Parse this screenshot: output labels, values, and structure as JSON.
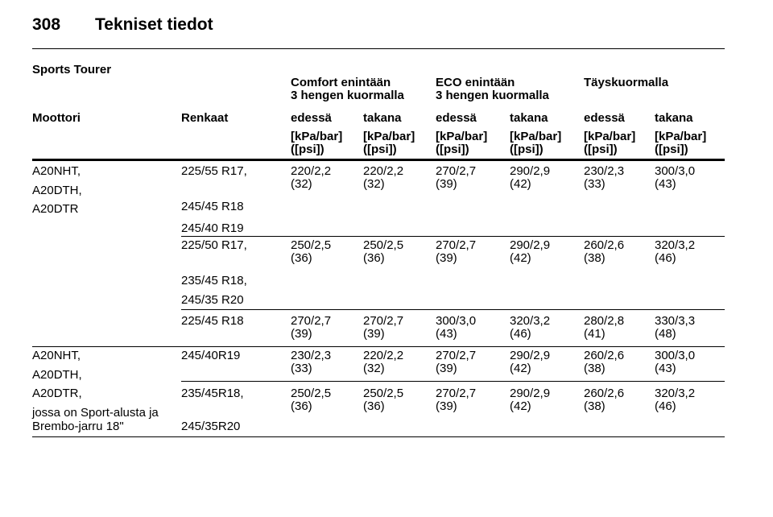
{
  "header": {
    "page_number": "308",
    "title": "Tekniset tiedot"
  },
  "table": {
    "caption": "Sports Tourer",
    "group_headers": [
      [
        "Comfort enintään",
        "3 hengen kuormalla"
      ],
      [
        "ECO enintään",
        "3 hengen kuormalla"
      ],
      [
        "Täyskuormalla"
      ]
    ],
    "columns": [
      "Moottori",
      "Renkaat",
      "edessä",
      "takana",
      "edessä",
      "takana",
      "edessä",
      "takana"
    ],
    "units": [
      [
        "[kPa/bar]",
        "([psi])"
      ],
      [
        "[kPa/bar]",
        "([psi])"
      ],
      [
        "[kPa/bar]",
        "([psi])"
      ],
      [
        "[kPa/bar]",
        "([psi])"
      ],
      [
        "[kPa/bar]",
        "([psi])"
      ],
      [
        "[kPa/bar]",
        "([psi])"
      ]
    ],
    "groups": [
      {
        "engines": [
          "A20NHT,",
          "A20DTH,",
          "A20DTR"
        ],
        "rows": [
          {
            "tires": [
              "225/55 R17,",
              "245/45 R18",
              "245/40 R19"
            ],
            "values": [
              [
                "220/2,2",
                "(32)"
              ],
              [
                "220/2,2",
                "(32)"
              ],
              [
                "270/2,7",
                "(39)"
              ],
              [
                "290/2,9",
                "(42)"
              ],
              [
                "230/2,3",
                "(33)"
              ],
              [
                "300/3,0",
                "(43)"
              ]
            ]
          },
          {
            "tires": [
              "225/50 R17,",
              "235/45 R18,",
              "245/35 R20"
            ],
            "values": [
              [
                "250/2,5",
                "(36)"
              ],
              [
                "250/2,5",
                "(36)"
              ],
              [
                "270/2,7",
                "(39)"
              ],
              [
                "290/2,9",
                "(42)"
              ],
              [
                "260/2,6",
                "(38)"
              ],
              [
                "320/3,2",
                "(46)"
              ]
            ]
          },
          {
            "tires": [
              "225/45 R18"
            ],
            "values": [
              [
                "270/2,7",
                "(39)"
              ],
              [
                "270/2,7",
                "(39)"
              ],
              [
                "300/3,0",
                "(43)"
              ],
              [
                "320/3,2",
                "(46)"
              ],
              [
                "280/2,8",
                "(41)"
              ],
              [
                "330/3,3",
                "(48)"
              ]
            ]
          }
        ]
      },
      {
        "engines": [
          "A20NHT,",
          "A20DTH,",
          "A20DTR,",
          "jossa on Sport-alusta ja",
          "Brembo-jarru 18\""
        ],
        "rows": [
          {
            "tires": [
              "245/40R19"
            ],
            "values": [
              [
                "230/2,3",
                "(33)"
              ],
              [
                "220/2,2",
                "(32)"
              ],
              [
                "270/2,7",
                "(39)"
              ],
              [
                "290/2,9",
                "(42)"
              ],
              [
                "260/2,6",
                "(38)"
              ],
              [
                "300/3,0",
                "(43)"
              ]
            ]
          },
          {
            "tires": [
              "235/45R18,",
              "245/35R20"
            ],
            "values": [
              [
                "250/2,5",
                "(36)"
              ],
              [
                "250/2,5",
                "(36)"
              ],
              [
                "270/2,7",
                "(39)"
              ],
              [
                "290/2,9",
                "(42)"
              ],
              [
                "260/2,6",
                "(38)"
              ],
              [
                "320/3,2",
                "(46)"
              ]
            ]
          }
        ]
      }
    ]
  }
}
